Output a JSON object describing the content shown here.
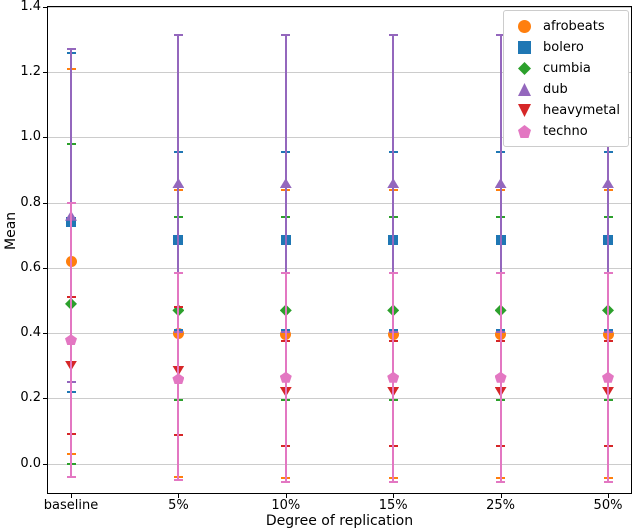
{
  "chart_data": {
    "type": "scatter",
    "title": "",
    "xlabel": "Degree of replication",
    "ylabel": "Mean",
    "categories": [
      "baseline",
      "5%",
      "10%",
      "15%",
      "25%",
      "50%"
    ],
    "ylim": [
      -0.09,
      1.4
    ],
    "yticks": [
      0.0,
      0.2,
      0.4,
      0.6,
      0.8,
      1.0,
      1.2,
      1.4
    ],
    "grid": "horizontal",
    "legend_position": "upper right",
    "series": [
      {
        "name": "afrobeats",
        "color": "#ff7f0e",
        "marker": "circle",
        "means": [
          0.62,
          0.4,
          0.395,
          0.395,
          0.395,
          0.395
        ],
        "err_low": [
          0.03,
          -0.04,
          -0.045,
          -0.045,
          -0.045,
          -0.045
        ],
        "err_high": [
          1.21,
          0.84,
          0.84,
          0.84,
          0.84,
          0.84
        ]
      },
      {
        "name": "bolero",
        "color": "#1f77b4",
        "marker": "square",
        "means": [
          0.74,
          0.685,
          0.685,
          0.685,
          0.685,
          0.685
        ],
        "err_low": [
          0.22,
          0.41,
          0.41,
          0.41,
          0.41,
          0.41
        ],
        "err_high": [
          1.26,
          0.955,
          0.955,
          0.955,
          0.955,
          0.955
        ]
      },
      {
        "name": "cumbia",
        "color": "#2ca02c",
        "marker": "diamond",
        "means": [
          0.49,
          0.47,
          0.47,
          0.47,
          0.47,
          0.47
        ],
        "err_low": [
          0.0,
          0.195,
          0.195,
          0.195,
          0.195,
          0.195
        ],
        "err_high": [
          0.98,
          0.755,
          0.755,
          0.755,
          0.755,
          0.755
        ]
      },
      {
        "name": "dub",
        "color": "#9467bd",
        "marker": "triangle-up",
        "means": [
          0.76,
          0.86,
          0.86,
          0.86,
          0.86,
          0.86
        ],
        "err_low": [
          0.25,
          0.405,
          0.405,
          0.405,
          0.405,
          0.405
        ],
        "err_high": [
          1.27,
          1.315,
          1.315,
          1.315,
          1.315,
          1.315
        ]
      },
      {
        "name": "heavymetal",
        "color": "#d62728",
        "marker": "triangle-down",
        "means": [
          0.3,
          0.285,
          0.22,
          0.22,
          0.22,
          0.22
        ],
        "err_low": [
          0.09,
          0.088,
          0.055,
          0.055,
          0.055,
          0.055
        ],
        "err_high": [
          0.51,
          0.48,
          0.375,
          0.375,
          0.375,
          0.375
        ]
      },
      {
        "name": "techno",
        "color": "#e377c2",
        "marker": "pentagon",
        "means": [
          0.38,
          0.26,
          0.265,
          0.265,
          0.265,
          0.265
        ],
        "err_low": [
          -0.04,
          -0.05,
          -0.055,
          -0.055,
          -0.055,
          -0.055
        ],
        "err_high": [
          0.8,
          0.585,
          0.585,
          0.585,
          0.585,
          0.585
        ]
      }
    ]
  }
}
